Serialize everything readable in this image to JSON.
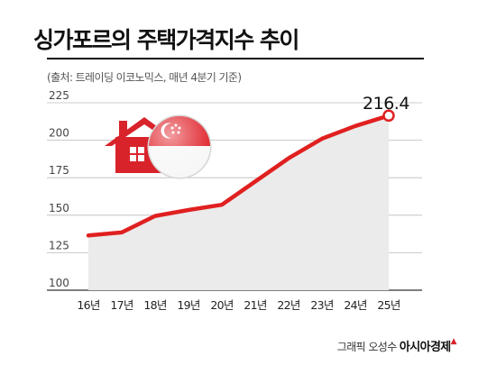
{
  "header": {
    "title": "싱가포르의 주택가격지수 추이",
    "source": "(출처: 트레이딩 이코노믹스, 매년 4분기 기준)"
  },
  "credit": {
    "author": "그래픽 오성수",
    "brand": "아시아경제"
  },
  "colors": {
    "line": "#e02020",
    "area": "#ebebeb",
    "house": "#d9232a"
  },
  "icons": [
    "house-icon",
    "singapore-flag-icon"
  ],
  "chart_data": {
    "type": "area",
    "title": "싱가포르의 주택가격지수 추이",
    "categories": [
      "16년",
      "17년",
      "18년",
      "19년",
      "20년",
      "21년",
      "22년",
      "23년",
      "24년",
      "25년"
    ],
    "values": [
      136.5,
      138.5,
      149.5,
      153.5,
      157,
      172.5,
      188,
      201,
      209.5,
      216.4
    ],
    "annotation": "216.4",
    "ylim": [
      100,
      225
    ],
    "yticks": [
      "100",
      "125",
      "150",
      "175",
      "200",
      "225"
    ],
    "grid": true,
    "xlabel": "",
    "ylabel": ""
  }
}
